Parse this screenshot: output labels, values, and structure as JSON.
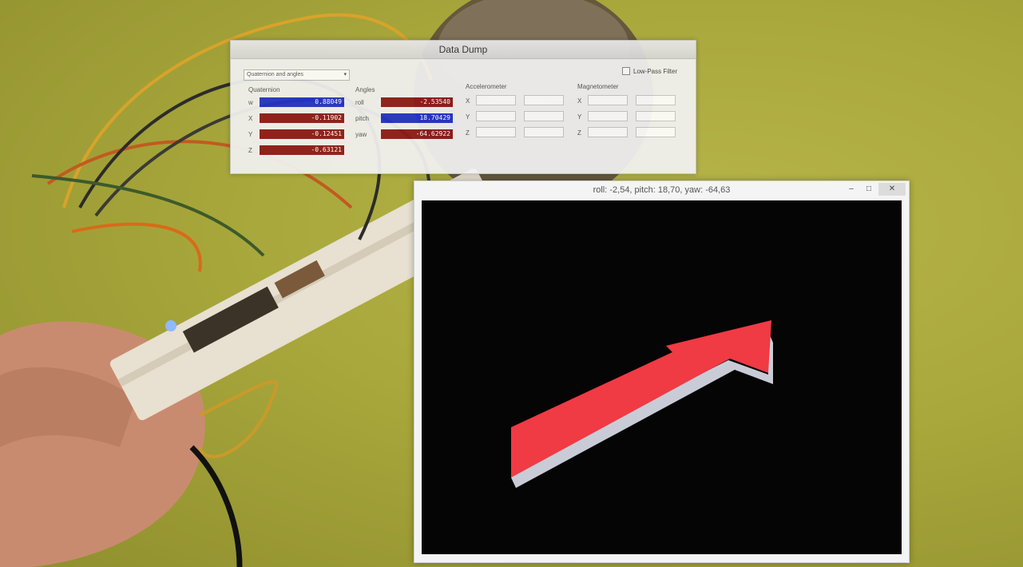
{
  "data_dump": {
    "title": "Data Dump",
    "mode": "Quaternion and angles",
    "low_pass_label": "Low-Pass Filter",
    "quaternion": {
      "label": "Quaternion",
      "rows": [
        {
          "name": "w",
          "value": "0.88049",
          "color": "#2233c8"
        },
        {
          "name": "X",
          "value": "-0.11902",
          "color": "#8e1a1a"
        },
        {
          "name": "Y",
          "value": "-0.12451",
          "color": "#8e1a1a"
        },
        {
          "name": "Z",
          "value": "-0.63121",
          "color": "#8e1a1a"
        }
      ]
    },
    "angles": {
      "label": "Angles",
      "rows": [
        {
          "name": "roll",
          "value": "-2.53540",
          "color": "#8e1a1a"
        },
        {
          "name": "pitch",
          "value": "18.70429",
          "color": "#2233c8"
        },
        {
          "name": "yaw",
          "value": "-64.62922",
          "color": "#8e1a1a"
        }
      ]
    },
    "accelerometer": {
      "label": "Accelerometer",
      "axes": [
        "X",
        "Y",
        "Z"
      ]
    },
    "magnetometer": {
      "label": "Magnetometer",
      "axes": [
        "X",
        "Y",
        "Z"
      ]
    }
  },
  "viewer": {
    "title": "roll: -2,54, pitch: 18,70, yaw: -64,63",
    "minimize_glyph": "–",
    "maximize_glyph": "□",
    "close_glyph": "✕",
    "arrow_color": "#f03a44",
    "arrow_edge_color": "#c9ccd6"
  }
}
